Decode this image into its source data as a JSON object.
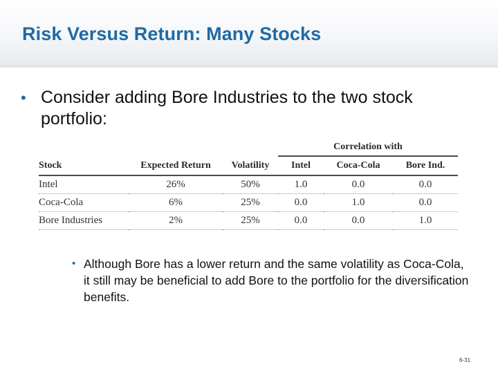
{
  "slide": {
    "title": "Risk Versus Return: Many Stocks",
    "bullet_main": "Consider adding Bore Industries to the two stock portfolio:",
    "bullet_sub": "Although Bore has a lower return and the same volatility as Coca-Cola, it still may be beneficial to add Bore to the portfolio for the diversification benefits.",
    "bullet_char": "•",
    "slide_number": "6-31"
  },
  "table": {
    "group_header": "Correlation with",
    "columns": [
      "Stock",
      "Expected Return",
      "Volatility",
      "Intel",
      "Coca-Cola",
      "Bore Ind."
    ],
    "rows": [
      [
        "Intel",
        "26%",
        "50%",
        "1.0",
        "0.0",
        "0.0"
      ],
      [
        "Coca-Cola",
        "6%",
        "25%",
        "0.0",
        "1.0",
        "0.0"
      ],
      [
        "Bore Industries",
        "2%",
        "25%",
        "0.0",
        "0.0",
        "1.0"
      ]
    ]
  },
  "colors": {
    "title": "#1f6aa5",
    "bullet": "#1f6aa5",
    "text": "#111111",
    "table_text": "#333333"
  }
}
